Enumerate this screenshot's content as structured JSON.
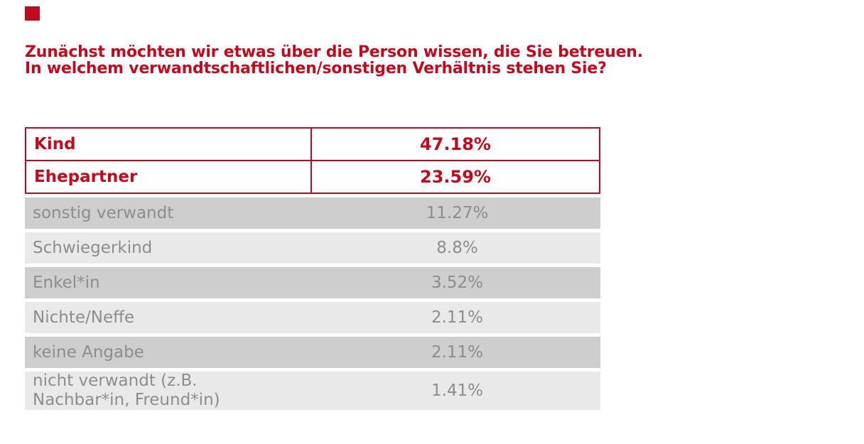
{
  "slide": {
    "background": "#ffffff",
    "logo_mark": "red-square"
  },
  "title": {
    "line1": "Zunächst möchten wir etwas über die Person wissen, die Sie betreuen.",
    "line2": "In welchem verwandtschaftlichen/sonstigen Verhältnis stehen Sie?"
  },
  "colors": {
    "accent_red": "#c00a1e",
    "text_gray": "#8d8d8d",
    "row_dark": "#cecece",
    "row_light": "#e9e9e9"
  },
  "chart_data": {
    "type": "table",
    "title": "Zunächst möchten wir etwas über die Person wissen, die Sie betreuen. In welchem verwandtschaftlichen/sonstigen Verhältnis stehen Sie?",
    "categories": [
      "Kind",
      "Ehepartner",
      "sonstig verwandt",
      "Schwiegerkind",
      "Enkel*in",
      "Nichte/Neffe",
      "keine Angabe",
      "nicht verwandt (z.B. Nachbar*in, Freund*in)"
    ],
    "values": [
      47.18,
      23.59,
      11.27,
      8.8,
      3.52,
      2.11,
      2.11,
      1.41
    ],
    "highlighted_rows": [
      0,
      1
    ],
    "legend": "none",
    "grid": "off",
    "rows": [
      {
        "label_lines": [
          "Kind"
        ],
        "value_label": "47.18%",
        "emphasized": true
      },
      {
        "label_lines": [
          "Ehepartner"
        ],
        "value_label": "23.59%",
        "emphasized": true
      },
      {
        "label_lines": [
          "sonstig verwandt"
        ],
        "value_label": "11.27%",
        "emphasized": false
      },
      {
        "label_lines": [
          "Schwiegerkind"
        ],
        "value_label": "8.8%",
        "emphasized": false
      },
      {
        "label_lines": [
          "Enkel*in"
        ],
        "value_label": "3.52%",
        "emphasized": false
      },
      {
        "label_lines": [
          "Nichte/Neffe"
        ],
        "value_label": "2.11%",
        "emphasized": false
      },
      {
        "label_lines": [
          "keine Angabe"
        ],
        "value_label": "2.11%",
        "emphasized": false
      },
      {
        "label_lines": [
          "nicht verwandt (z.B.",
          "Nachbar*in, Freund*in)"
        ],
        "value_label": "1.41%",
        "emphasized": false
      }
    ]
  }
}
